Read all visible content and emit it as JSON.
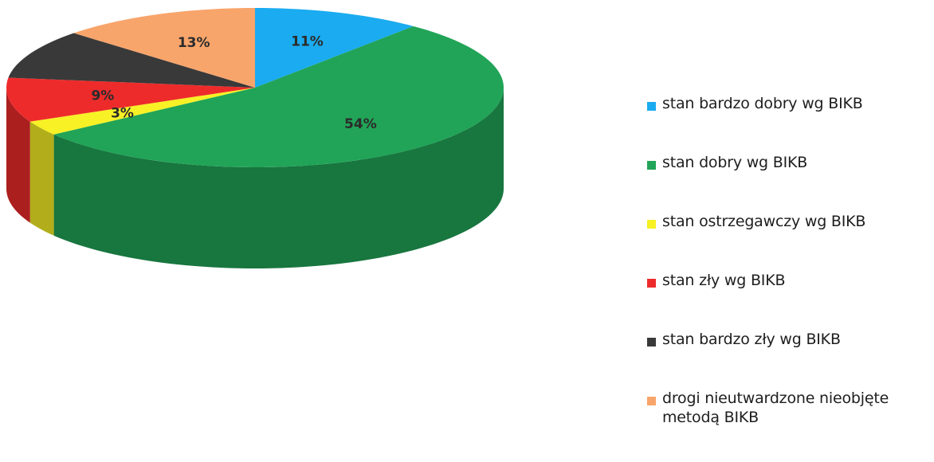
{
  "chart_data": {
    "type": "pie",
    "title": "",
    "slices": [
      {
        "label": "stan bardzo dobry wg BIKB",
        "value": 11,
        "value_label": "11%",
        "color": "#1aabf0"
      },
      {
        "label": "stan dobry wg BIKB",
        "value": 54,
        "value_label": "54%",
        "color": "#21a457"
      },
      {
        "label": "stan ostrzegawczy wg BIKB",
        "value": 3,
        "value_label": "3%",
        "color": "#f7f125"
      },
      {
        "label": "stan zły wg BIKB",
        "value": 9,
        "value_label": "9%",
        "color": "#ee2b2b"
      },
      {
        "label": "stan bardzo zły wg BIKB",
        "value": 10,
        "value_label": "",
        "color": "#393939"
      },
      {
        "label": "drogi nieutwardzone nieobjęte metodą BIKB",
        "value": 13,
        "value_label": "13%",
        "color": "#f8a56b"
      }
    ],
    "legend_position": "right",
    "style": "3d"
  },
  "legend": {
    "items": [
      {
        "label": "stan bardzo dobry wg BIKB",
        "color": "#1aabf0"
      },
      {
        "label": "stan dobry wg BIKB",
        "color": "#21a457"
      },
      {
        "label": "stan ostrzegawczy wg BIKB",
        "color": "#f7f125"
      },
      {
        "label": "stan zły wg BIKB",
        "color": "#ee2b2b"
      },
      {
        "label": "stan bardzo zły wg BIKB",
        "color": "#393939"
      },
      {
        "label": "drogi nieutwardzone nieobjęte metodą BIKB",
        "color": "#f8a56b"
      }
    ]
  }
}
